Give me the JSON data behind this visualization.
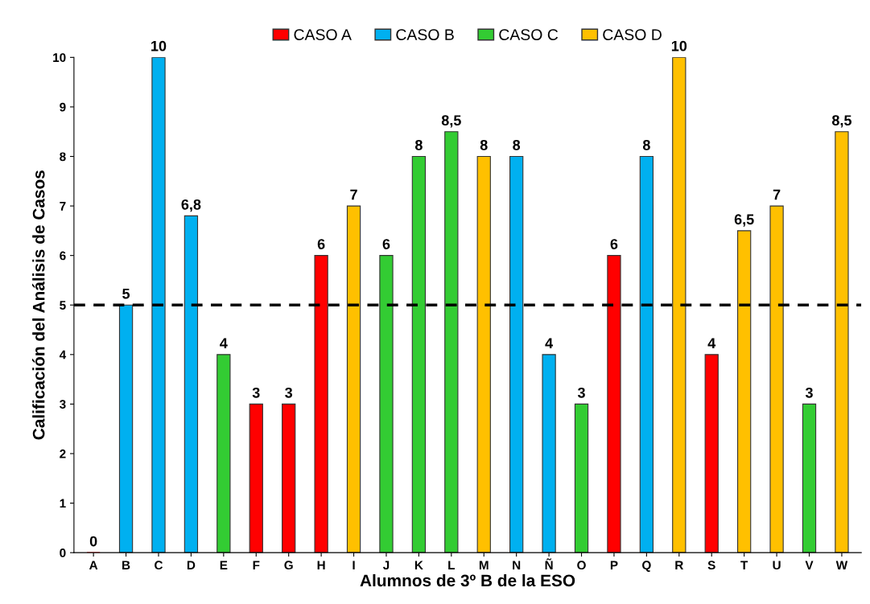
{
  "chart_data": {
    "type": "bar",
    "xlabel": "Alumnos de 3º B de la ESO",
    "ylabel": "Calificación del Análisis de Casos",
    "categories": [
      "A",
      "B",
      "C",
      "D",
      "E",
      "F",
      "G",
      "H",
      "I",
      "J",
      "K",
      "L",
      "M",
      "N",
      "Ñ",
      "O",
      "P",
      "Q",
      "R",
      "S",
      "T",
      "U",
      "V",
      "W"
    ],
    "series": [
      {
        "name": "CASO A",
        "color": "#ff0000",
        "values": [
          0,
          null,
          null,
          null,
          null,
          3,
          3,
          6,
          null,
          null,
          null,
          null,
          null,
          null,
          null,
          null,
          6,
          null,
          null,
          4,
          null,
          null,
          null,
          null
        ],
        "value_labels": [
          "0",
          null,
          null,
          null,
          null,
          "3",
          "3",
          "6",
          null,
          null,
          null,
          null,
          null,
          null,
          null,
          null,
          "6",
          null,
          null,
          "4",
          null,
          null,
          null,
          null
        ]
      },
      {
        "name": "CASO B",
        "color": "#00b0f0",
        "values": [
          null,
          5,
          10,
          6.8,
          null,
          null,
          null,
          null,
          null,
          null,
          null,
          null,
          null,
          8,
          4,
          null,
          null,
          8,
          null,
          null,
          null,
          null,
          null,
          null
        ],
        "value_labels": [
          null,
          "5",
          "10",
          "6,8",
          null,
          null,
          null,
          null,
          null,
          null,
          null,
          null,
          null,
          "8",
          "4",
          null,
          null,
          "8",
          null,
          null,
          null,
          null,
          null,
          null
        ]
      },
      {
        "name": "CASO C",
        "color": "#33cc33",
        "values": [
          null,
          null,
          null,
          null,
          4,
          null,
          null,
          null,
          null,
          6,
          8,
          8.5,
          null,
          null,
          null,
          3,
          null,
          null,
          null,
          null,
          null,
          null,
          3,
          null
        ],
        "value_labels": [
          null,
          null,
          null,
          null,
          "4",
          null,
          null,
          null,
          null,
          "6",
          "8",
          "8,5",
          null,
          null,
          null,
          "3",
          null,
          null,
          null,
          null,
          null,
          null,
          "3",
          null
        ]
      },
      {
        "name": "CASO D",
        "color": "#ffc000",
        "values": [
          null,
          null,
          null,
          null,
          null,
          null,
          null,
          null,
          7,
          null,
          null,
          null,
          8,
          null,
          null,
          null,
          null,
          null,
          10,
          null,
          6.5,
          7,
          null,
          8.5
        ],
        "value_labels": [
          null,
          null,
          null,
          null,
          null,
          null,
          null,
          null,
          "7",
          null,
          null,
          null,
          "8",
          null,
          null,
          null,
          null,
          null,
          "10",
          null,
          "6,5",
          "7",
          null,
          "8,5"
        ]
      }
    ],
    "ylim": [
      0,
      10
    ],
    "yticks": [
      0,
      1,
      2,
      3,
      4,
      5,
      6,
      7,
      8,
      9,
      10
    ],
    "grid": false,
    "legend": "top",
    "ref_lines": [
      {
        "axis": "y",
        "value": 5,
        "color": "#000000",
        "line_style": "dashed"
      }
    ]
  }
}
